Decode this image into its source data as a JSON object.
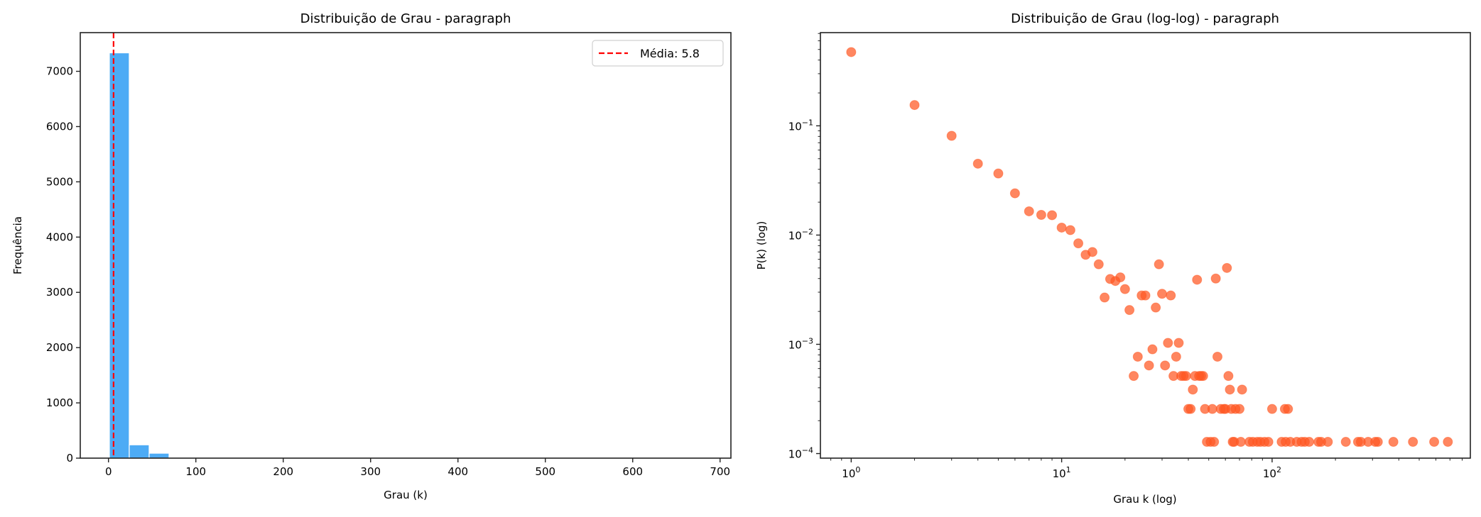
{
  "chart_data": [
    {
      "type": "bar",
      "title": "Distribuição de Grau - paragraph",
      "xlabel": "Grau (k)",
      "ylabel": "Frequência",
      "xlim": [
        -32.3,
        712.4
      ],
      "ylim": [
        0,
        7700
      ],
      "xticks": [
        0,
        100,
        200,
        300,
        400,
        500,
        600,
        700
      ],
      "xtick_labels": [
        "0",
        "100",
        "200",
        "300",
        "400",
        "500",
        "600",
        "700"
      ],
      "yticks": [
        0,
        1000,
        2000,
        3000,
        4000,
        5000,
        6000,
        7000
      ],
      "ytick_labels": [
        "0",
        "1000",
        "2000",
        "3000",
        "4000",
        "5000",
        "6000",
        "7000"
      ],
      "bin_start": 1,
      "bin_width": 22.77,
      "values": [
        7334,
        241,
        89,
        10,
        6,
        6,
        4,
        2,
        1,
        1,
        0,
        2,
        1,
        2,
        0,
        0,
        1,
        0,
        0,
        0,
        1,
        0,
        0,
        0,
        0,
        1,
        0,
        0,
        0,
        1
      ],
      "bar_color": "#4DABF5",
      "mean_line": {
        "value": 5.8,
        "color": "#FF0000",
        "label": "Média: 5.8"
      },
      "legend": "top-right",
      "grid": false
    },
    {
      "type": "scatter",
      "title": "Distribuição de Grau (log-log) - paragraph",
      "xlabel": "Grau k (log)",
      "ylabel": "P(k) (log)",
      "xscale": "log",
      "yscale": "log",
      "xlim": [
        0.714,
        875
      ],
      "ylim": [
        9.08e-05,
        0.713
      ],
      "xticks": [
        1,
        10,
        100
      ],
      "xtick_labels": [
        [
          "10",
          "0"
        ],
        [
          "10",
          "1"
        ],
        [
          "10",
          "2"
        ]
      ],
      "yticks": [
        0.0001,
        0.001,
        0.01,
        0.1
      ],
      "ytick_labels": [
        [
          "10",
          "−4"
        ],
        [
          "10",
          "−3"
        ],
        [
          "10",
          "−2"
        ],
        [
          "10",
          "−1"
        ]
      ],
      "color": "#FF5722",
      "grid": false,
      "points": [
        [
          1,
          0.473
        ],
        [
          2,
          0.155
        ],
        [
          3,
          0.081
        ],
        [
          4,
          0.045
        ],
        [
          5,
          0.0366
        ],
        [
          6,
          0.0241
        ],
        [
          7,
          0.0165
        ],
        [
          8,
          0.0153
        ],
        [
          9,
          0.0152
        ],
        [
          10,
          0.0117
        ],
        [
          11,
          0.0111
        ],
        [
          12,
          0.0084
        ],
        [
          13,
          0.0066
        ],
        [
          14,
          0.007
        ],
        [
          15,
          0.0054
        ],
        [
          16,
          0.00268
        ],
        [
          17,
          0.00396
        ],
        [
          18,
          0.0038
        ],
        [
          19,
          0.0041
        ],
        [
          20,
          0.0032
        ],
        [
          21,
          0.00206
        ],
        [
          22,
          0.000513
        ],
        [
          23,
          0.00077
        ],
        [
          24,
          0.0028
        ],
        [
          25,
          0.0028
        ],
        [
          26,
          0.00064
        ],
        [
          27,
          0.0009
        ],
        [
          28,
          0.00217
        ],
        [
          29,
          0.0054
        ],
        [
          30,
          0.0029
        ],
        [
          31,
          0.00064
        ],
        [
          32,
          0.00103
        ],
        [
          33,
          0.0028
        ],
        [
          34,
          0.000513
        ],
        [
          35,
          0.00077
        ],
        [
          36,
          0.00103
        ],
        [
          37,
          0.000513
        ],
        [
          38,
          0.000513
        ],
        [
          39,
          0.000513
        ],
        [
          40,
          0.000256
        ],
        [
          41,
          0.000256
        ],
        [
          42,
          0.000385
        ],
        [
          43,
          0.000513
        ],
        [
          44,
          0.0039
        ],
        [
          45,
          0.000513
        ],
        [
          46,
          0.000513
        ],
        [
          47,
          0.000513
        ],
        [
          48,
          0.000256
        ],
        [
          49,
          0.000128
        ],
        [
          51,
          0.000128
        ],
        [
          52,
          0.000256
        ],
        [
          53,
          0.000128
        ],
        [
          54,
          0.004
        ],
        [
          55,
          0.00077
        ],
        [
          57,
          0.000256
        ],
        [
          59,
          0.000256
        ],
        [
          60,
          0.000256
        ],
        [
          61,
          0.005
        ],
        [
          62,
          0.000513
        ],
        [
          63,
          0.000385
        ],
        [
          64,
          0.000256
        ],
        [
          65,
          0.000128
        ],
        [
          66,
          0.000128
        ],
        [
          67,
          0.000256
        ],
        [
          70,
          0.000256
        ],
        [
          71,
          0.000128
        ],
        [
          72,
          0.000385
        ],
        [
          78,
          0.000128
        ],
        [
          81,
          0.000128
        ],
        [
          85,
          0.000128
        ],
        [
          88,
          0.000128
        ],
        [
          92,
          0.000128
        ],
        [
          96,
          0.000128
        ],
        [
          100,
          0.000256
        ],
        [
          111,
          0.000128
        ],
        [
          115,
          0.000256
        ],
        [
          116,
          0.000128
        ],
        [
          119,
          0.000256
        ],
        [
          122,
          0.000128
        ],
        [
          131,
          0.000128
        ],
        [
          138,
          0.000128
        ],
        [
          143,
          0.000128
        ],
        [
          150,
          0.000128
        ],
        [
          166,
          0.000128
        ],
        [
          171,
          0.000128
        ],
        [
          184,
          0.000128
        ],
        [
          224,
          0.000128
        ],
        [
          256,
          0.000128
        ],
        [
          264,
          0.000128
        ],
        [
          286,
          0.000128
        ],
        [
          309,
          0.000128
        ],
        [
          318,
          0.000128
        ],
        [
          377,
          0.000128
        ],
        [
          467,
          0.000128
        ],
        [
          589,
          0.000128
        ],
        [
          684,
          0.000128
        ]
      ]
    }
  ]
}
